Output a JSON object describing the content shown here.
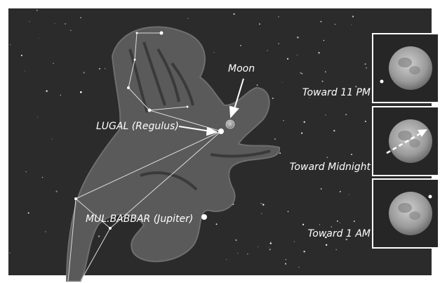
{
  "labels": {
    "moon": "Moon",
    "regulus": "LUGAL (Regulus)",
    "jupiter": "MUL.BABBAR (Jupiter)"
  },
  "panels": [
    {
      "label": "Toward 11 PM"
    },
    {
      "label": "Toward Midnight"
    },
    {
      "label": "Toward 1 AM"
    }
  ]
}
